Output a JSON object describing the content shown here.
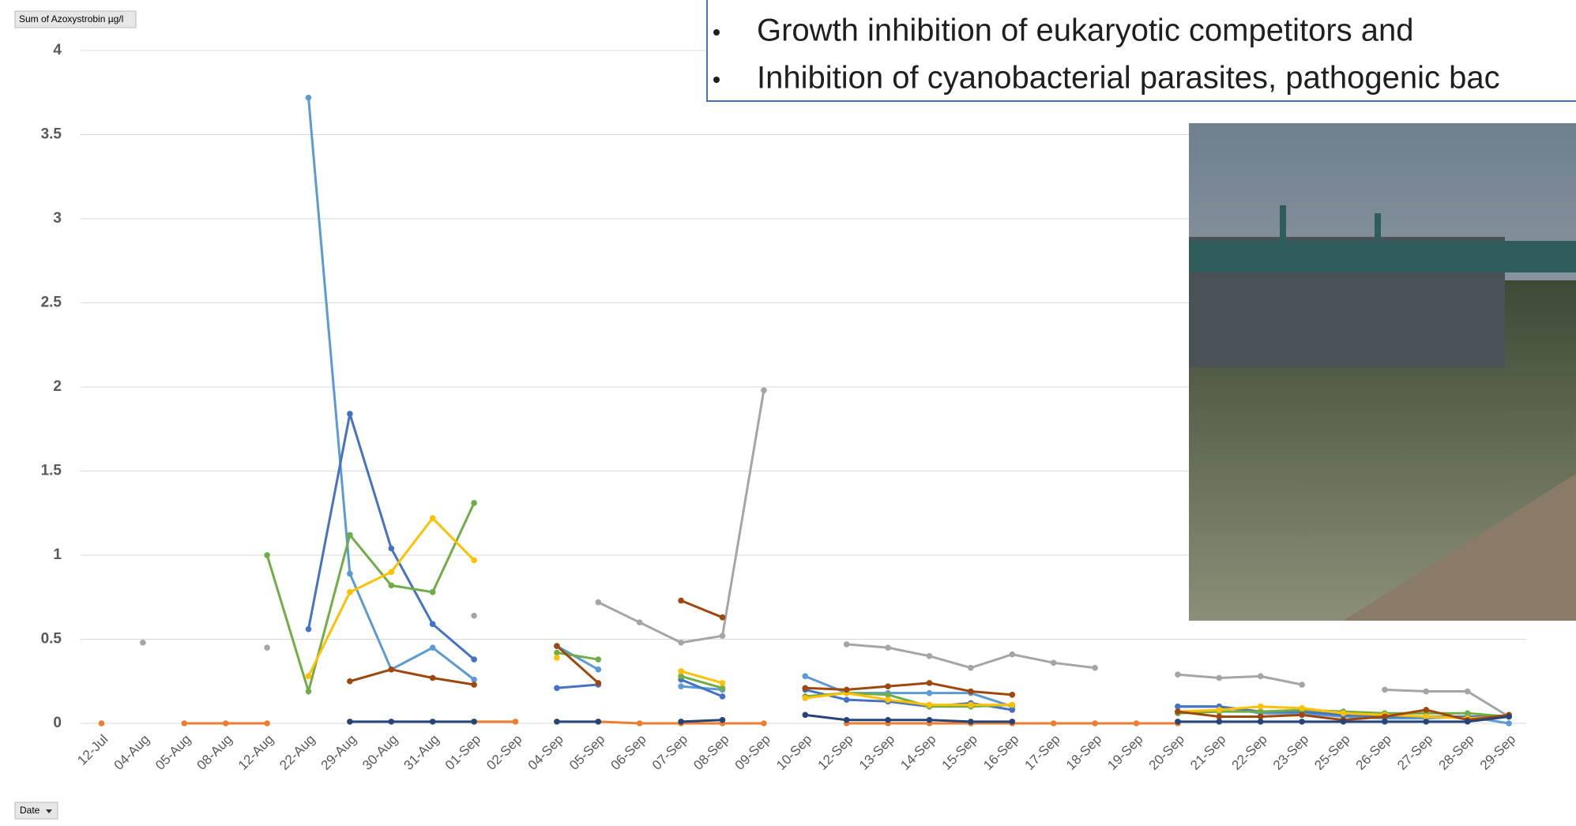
{
  "pivot_buttons": {
    "value_field": "Sum of Azoxystrobin µg/l",
    "axis_field": "Date"
  },
  "text_box": {
    "lines": [
      "Growth inhibition of eukaryotic competitors and",
      "Inhibition of cyanobacterial parasites, pathogenic bac"
    ]
  },
  "chart_data": {
    "type": "line",
    "ylim": [
      0,
      4
    ],
    "yticks": [
      0,
      0.5,
      1,
      1.5,
      2,
      2.5,
      3,
      3.5,
      4
    ],
    "grid": true,
    "categories": [
      "12-Jul",
      "04-Aug",
      "05-Aug",
      "08-Aug",
      "12-Aug",
      "22-Aug",
      "29-Aug",
      "30-Aug",
      "31-Aug",
      "01-Sep",
      "02-Sep",
      "04-Sep",
      "05-Sep",
      "06-Sep",
      "07-Sep",
      "08-Sep",
      "09-Sep",
      "10-Sep",
      "12-Sep",
      "13-Sep",
      "14-Sep",
      "15-Sep",
      "16-Sep",
      "17-Sep",
      "18-Sep",
      "19-Sep",
      "20-Sep",
      "21-Sep",
      "22-Sep",
      "23-Sep",
      "25-Sep",
      "26-Sep",
      "27-Sep",
      "28-Sep",
      "29-Sep"
    ],
    "series": [
      {
        "color": "#ED7D31",
        "values": [
          0,
          null,
          0,
          0,
          0,
          null,
          null,
          null,
          null,
          0.01,
          0.01,
          null,
          0.01,
          0,
          0,
          0,
          0,
          null,
          0,
          0,
          0,
          0,
          0,
          0,
          0,
          0,
          0,
          null,
          null,
          null,
          null,
          null,
          null,
          null,
          null
        ]
      },
      {
        "color": "#A5A5A5",
        "values": [
          null,
          0.48,
          null,
          null,
          0.45,
          null,
          null,
          null,
          null,
          0.64,
          null,
          null,
          0.72,
          0.6,
          0.48,
          0.52,
          1.98,
          null,
          0.47,
          0.45,
          0.4,
          0.33,
          0.41,
          0.36,
          0.33,
          null,
          0.29,
          0.27,
          0.28,
          0.23,
          null,
          0.2,
          0.19,
          0.19,
          0.04
        ]
      },
      {
        "color": "#5B9BD5",
        "values": [
          null,
          null,
          null,
          null,
          null,
          3.72,
          0.89,
          0.32,
          0.45,
          0.26,
          null,
          0.46,
          0.32,
          null,
          0.22,
          0.2,
          null,
          0.28,
          0.18,
          0.18,
          0.18,
          0.18,
          0.1,
          null,
          null,
          null,
          0.1,
          0.1,
          0.06,
          0.06,
          0.04,
          0.03,
          0.03,
          0.04,
          0
        ]
      },
      {
        "color": "#4472C4",
        "values": [
          null,
          null,
          null,
          null,
          null,
          0.56,
          1.84,
          1.04,
          0.59,
          0.38,
          null,
          0.21,
          0.23,
          null,
          0.26,
          0.16,
          null,
          0.2,
          0.14,
          0.13,
          0.1,
          0.12,
          0.08,
          null,
          null,
          null,
          0.1,
          0.1,
          0.07,
          0.07,
          0.05,
          0.04,
          0.04,
          0.04,
          0.04
        ]
      },
      {
        "color": "#70AD47",
        "values": [
          null,
          null,
          null,
          null,
          1,
          0.19,
          1.12,
          0.82,
          0.78,
          1.31,
          null,
          0.42,
          0.38,
          null,
          0.28,
          0.21,
          null,
          0.16,
          0.18,
          0.17,
          0.1,
          0.1,
          0.11,
          null,
          null,
          null,
          0.06,
          0.07,
          0.07,
          0.08,
          0.07,
          0.06,
          0.06,
          0.06,
          0.04
        ]
      },
      {
        "color": "#FFC000",
        "values": [
          null,
          null,
          null,
          null,
          null,
          0.28,
          0.78,
          0.9,
          1.22,
          0.97,
          null,
          0.39,
          null,
          null,
          0.31,
          0.24,
          null,
          0.15,
          0.18,
          0.14,
          0.11,
          0.11,
          0.11,
          null,
          null,
          null,
          0.07,
          0.08,
          0.1,
          0.09,
          0.06,
          0.05,
          0.04,
          0.03,
          0.04
        ]
      },
      {
        "color": "#9E480E",
        "values": [
          null,
          null,
          null,
          null,
          null,
          null,
          0.25,
          0.32,
          0.27,
          0.23,
          null,
          0.46,
          0.24,
          null,
          0.73,
          0.63,
          null,
          0.21,
          0.2,
          0.22,
          0.24,
          0.19,
          0.17,
          null,
          null,
          null,
          0.07,
          0.04,
          0.04,
          0.05,
          0.02,
          0.04,
          0.08,
          0.02,
          0.05
        ]
      },
      {
        "color": "#264478",
        "values": [
          null,
          null,
          null,
          null,
          null,
          null,
          0.01,
          0.01,
          0.01,
          0.01,
          null,
          0.01,
          0.01,
          null,
          0.01,
          0.02,
          null,
          0.05,
          0.02,
          0.02,
          0.02,
          0.01,
          0.01,
          null,
          null,
          null,
          0.01,
          0.01,
          0.01,
          0.01,
          0.01,
          0.01,
          0.01,
          0.01,
          0.04
        ]
      }
    ]
  }
}
